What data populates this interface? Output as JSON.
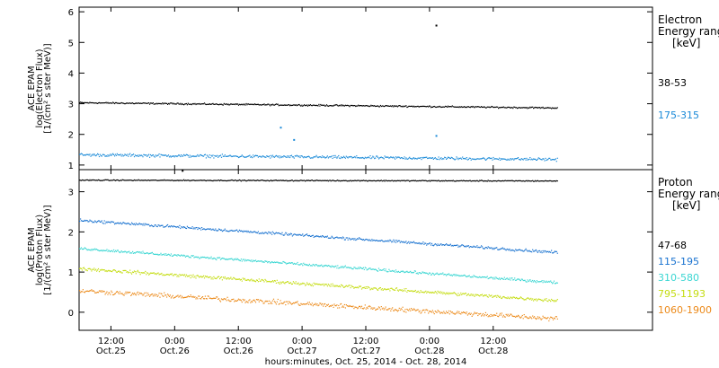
{
  "chart_data": [
    {
      "type": "scatter",
      "panel": "electron",
      "ylabel_lines": [
        "ACE EPAM",
        "log(Electron Flux)",
        "[1/(cm² s ster MeV)]"
      ],
      "ylim": [
        0.85,
        6.15
      ],
      "yticks": [
        1,
        2,
        3,
        4,
        5,
        6
      ],
      "legend": {
        "title_lines": [
          "Electron",
          "Energy ranges",
          "[keV]"
        ],
        "placement": "right"
      },
      "series": [
        {
          "name": "38-53",
          "color": "#000000",
          "start": 3.05,
          "end": 2.88,
          "noise": 0.03,
          "events": [
            {
              "x": 67.3,
              "y": 5.55
            }
          ]
        },
        {
          "name": "175-315",
          "color": "#1a8ad8",
          "start": 1.35,
          "end": 1.2,
          "noise": 0.06,
          "events": [
            {
              "x": 38.0,
              "y": 2.22
            },
            {
              "x": 40.5,
              "y": 1.82
            },
            {
              "x": 67.3,
              "y": 1.95
            }
          ]
        }
      ]
    },
    {
      "type": "scatter",
      "panel": "proton",
      "ylabel_lines": [
        "ACE EPAM",
        "log(Proton Flux)",
        "[1/(cm² s ster MeV)]"
      ],
      "ylim": [
        -0.45,
        3.55
      ],
      "yticks": [
        0,
        1,
        2,
        3
      ],
      "legend": {
        "title_lines": [
          "Proton",
          "Energy ranges",
          "[keV]"
        ],
        "placement": "right"
      },
      "series": [
        {
          "name": "47-68",
          "color": "#000000",
          "start": 3.3,
          "end": 3.28,
          "noise": 0.015,
          "events": [
            {
              "x": 19.5,
              "y": 3.52
            }
          ]
        },
        {
          "name": "115-195",
          "color": "#1a73d0",
          "start": 2.3,
          "end": 1.5,
          "noise": 0.04,
          "events": []
        },
        {
          "name": "310-580",
          "color": "#3ad6d2",
          "start": 1.6,
          "end": 0.75,
          "noise": 0.04,
          "events": []
        },
        {
          "name": "795-1193",
          "color": "#c4dc10",
          "start": 1.1,
          "end": 0.3,
          "noise": 0.05,
          "events": []
        },
        {
          "name": "1060-1900",
          "color": "#ec8a1a",
          "start": 0.55,
          "end": -0.15,
          "noise": 0.07,
          "events": []
        }
      ]
    }
  ],
  "x_axis": {
    "xlim": [
      0,
      108
    ],
    "data_end": 90,
    "ticks": [
      {
        "x": 6,
        "time": "12:00",
        "date": "Oct.25"
      },
      {
        "x": 18,
        "time": "0:00",
        "date": "Oct.26"
      },
      {
        "x": 30,
        "time": "12:00",
        "date": "Oct.26"
      },
      {
        "x": 42,
        "time": "0:00",
        "date": "Oct.27"
      },
      {
        "x": 54,
        "time": "12:00",
        "date": "Oct.27"
      },
      {
        "x": 66,
        "time": "0:00",
        "date": "Oct.28"
      },
      {
        "x": 78,
        "time": "12:00",
        "date": "Oct.28"
      }
    ],
    "xlabel": "hours:minutes, Oct. 25, 2014 - Oct. 28, 2014"
  }
}
